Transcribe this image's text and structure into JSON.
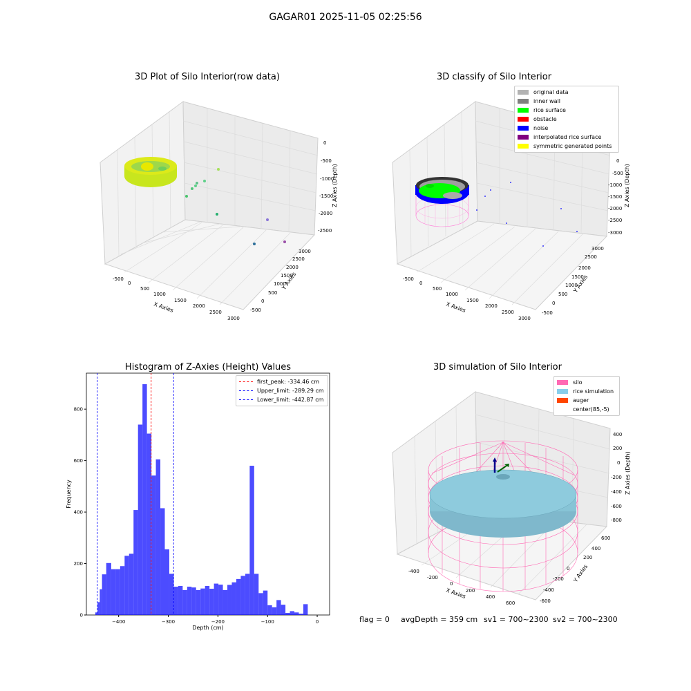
{
  "suptitle": "GAGAR01 2025-11-05 02:25:56",
  "panels": {
    "raw": {
      "title": "3D Plot of Silo Interior(row data)",
      "xlabel": "X Axies",
      "ylabel": "Y Axies",
      "zlabel": "Z Axies (Depth)",
      "xticks": [
        "-500",
        "0",
        "500",
        "1000",
        "1500",
        "2000",
        "2500",
        "3000"
      ],
      "yticks": [
        "-500",
        "0",
        "500",
        "1000",
        "1500",
        "2000",
        "2500",
        "3000"
      ],
      "zticks": [
        "0",
        "-500",
        "-1000",
        "-1500",
        "-2000",
        "-2500"
      ]
    },
    "classify": {
      "title": "3D classify of Silo Interior",
      "xlabel": "X Axies",
      "ylabel": "Y Axies",
      "zlabel": "Z Axies (Depth)",
      "xticks": [
        "-500",
        "0",
        "500",
        "1000",
        "1500",
        "2000",
        "2500",
        "3000"
      ],
      "yticks": [
        "-500",
        "0",
        "500",
        "1000",
        "1500",
        "2000",
        "2500",
        "3000"
      ],
      "zticks": [
        "0",
        "-500",
        "-1000",
        "-1500",
        "-2000",
        "-2500",
        "-3000"
      ],
      "legend": [
        {
          "label": "original data",
          "color": "#b3b3b3"
        },
        {
          "label": "inner wall",
          "color": "#808080"
        },
        {
          "label": "rice surface",
          "color": "#00ff00"
        },
        {
          "label": "obstacle",
          "color": "#ff0000"
        },
        {
          "label": "noise",
          "color": "#0000ff"
        },
        {
          "label": "interpolated rice surface",
          "color": "#800080"
        },
        {
          "label": "symmetric generated points",
          "color": "#ffff00"
        }
      ]
    },
    "simulation": {
      "title": "3D simulation of Silo Interior",
      "xlabel": "X Axies",
      "ylabel": "Y Axies",
      "zlabel": "Z Axies (Depth)",
      "xticks": [
        "-400",
        "-200",
        "0",
        "200",
        "400",
        "600"
      ],
      "yticks": [
        "-600",
        "-400",
        "-200",
        "0",
        "200",
        "400",
        "600"
      ],
      "zticks": [
        "400",
        "200",
        "0",
        "-200",
        "-400",
        "-600",
        "-800"
      ],
      "legend": [
        {
          "label": "silo",
          "color": "#ff69b4"
        },
        {
          "label": "rice simulation",
          "color": "#87ceeb"
        },
        {
          "label": "auger",
          "color": "#ff4500"
        },
        {
          "label": "center(85,-5)",
          "color": "#ffffff"
        }
      ]
    }
  },
  "histogram": {
    "title": "Histogram of Z-Axies (Height) Values",
    "xlabel": "Depth (cm)",
    "ylabel": "Frequency",
    "legend": [
      {
        "label": "first_peak: -334.46 cm",
        "color": "#ff0000"
      },
      {
        "label": "Upper_limit: -289.29 cm",
        "color": "#0000ff"
      },
      {
        "label": "Lower_limit: -442.87 cm",
        "color": "#0000ff"
      }
    ]
  },
  "footer": {
    "flag": "flag = 0",
    "avg": "avgDepth = 359 cm",
    "sv1": "sv1 = 700~2300",
    "sv2": "sv2 = 700~2300"
  },
  "chart_data": [
    {
      "type": "histogram",
      "title": "Histogram of Z-Axies (Height) Values",
      "xlabel": "Depth (cm)",
      "ylabel": "Frequency",
      "xlim": [
        -465,
        25
      ],
      "ylim": [
        0,
        940
      ],
      "xticks": [
        -400,
        -300,
        -200,
        -100,
        0
      ],
      "yticks": [
        0,
        200,
        400,
        600,
        800
      ],
      "bar_color": "#0000ff",
      "bins": [
        {
          "x0": -447,
          "x1": -442.5,
          "y": 10
        },
        {
          "x0": -442.5,
          "x1": -438,
          "y": 50
        },
        {
          "x0": -438,
          "x1": -433.5,
          "y": 100
        },
        {
          "x0": -433.5,
          "x1": -425,
          "y": 158
        },
        {
          "x0": -425,
          "x1": -415,
          "y": 202
        },
        {
          "x0": -415,
          "x1": -406,
          "y": 178
        },
        {
          "x0": -406,
          "x1": -397,
          "y": 178
        },
        {
          "x0": -397,
          "x1": -388,
          "y": 190
        },
        {
          "x0": -388,
          "x1": -379,
          "y": 230
        },
        {
          "x0": -379,
          "x1": -370,
          "y": 238
        },
        {
          "x0": -370,
          "x1": -361,
          "y": 408
        },
        {
          "x0": -361,
          "x1": -352,
          "y": 740
        },
        {
          "x0": -352,
          "x1": -343,
          "y": 897
        },
        {
          "x0": -343,
          "x1": -334,
          "y": 705
        },
        {
          "x0": -334,
          "x1": -325,
          "y": 542
        },
        {
          "x0": -325,
          "x1": -316,
          "y": 605
        },
        {
          "x0": -316,
          "x1": -307,
          "y": 415
        },
        {
          "x0": -307,
          "x1": -298,
          "y": 255
        },
        {
          "x0": -298,
          "x1": -289,
          "y": 160
        },
        {
          "x0": -289,
          "x1": -280,
          "y": 110
        },
        {
          "x0": -280,
          "x1": -271,
          "y": 113
        },
        {
          "x0": -271,
          "x1": -262,
          "y": 97
        },
        {
          "x0": -262,
          "x1": -253,
          "y": 110
        },
        {
          "x0": -253,
          "x1": -244,
          "y": 107
        },
        {
          "x0": -244,
          "x1": -235,
          "y": 97
        },
        {
          "x0": -235,
          "x1": -226,
          "y": 103
        },
        {
          "x0": -226,
          "x1": -217,
          "y": 113
        },
        {
          "x0": -217,
          "x1": -208,
          "y": 102
        },
        {
          "x0": -208,
          "x1": -199,
          "y": 122
        },
        {
          "x0": -199,
          "x1": -190,
          "y": 118
        },
        {
          "x0": -190,
          "x1": -181,
          "y": 97
        },
        {
          "x0": -181,
          "x1": -172,
          "y": 117
        },
        {
          "x0": -172,
          "x1": -163,
          "y": 127
        },
        {
          "x0": -163,
          "x1": -154,
          "y": 140
        },
        {
          "x0": -154,
          "x1": -145,
          "y": 152
        },
        {
          "x0": -145,
          "x1": -136,
          "y": 160
        },
        {
          "x0": -136,
          "x1": -127,
          "y": 580
        },
        {
          "x0": -127,
          "x1": -118,
          "y": 160
        },
        {
          "x0": -118,
          "x1": -109,
          "y": 85
        },
        {
          "x0": -109,
          "x1": -100,
          "y": 95
        },
        {
          "x0": -100,
          "x1": -91,
          "y": 38
        },
        {
          "x0": -91,
          "x1": -82,
          "y": 30
        },
        {
          "x0": -82,
          "x1": -73,
          "y": 58
        },
        {
          "x0": -73,
          "x1": -64,
          "y": 40
        },
        {
          "x0": -64,
          "x1": -55,
          "y": 8
        },
        {
          "x0": -55,
          "x1": -46,
          "y": 15
        },
        {
          "x0": -46,
          "x1": -37,
          "y": 10
        },
        {
          "x0": -37,
          "x1": -28,
          "y": 5
        },
        {
          "x0": -28,
          "x1": -19,
          "y": 42
        }
      ],
      "vlines": [
        {
          "label": "first_peak: -334.46 cm",
          "x": -334.46,
          "color": "#ff0000"
        },
        {
          "label": "Upper_limit: -289.29 cm",
          "x": -289.29,
          "color": "#0000ff"
        },
        {
          "label": "Lower_limit: -442.87 cm",
          "x": -442.87,
          "color": "#0000ff"
        }
      ]
    },
    {
      "type": "scatter",
      "title": "3D Plot of Silo Interior(row data)",
      "xlabel": "X Axies",
      "ylabel": "Y Axies",
      "zlabel": "Z Axies (Depth)",
      "xlim": [
        -500,
        3000
      ],
      "ylim": [
        -500,
        3000
      ],
      "zlim": [
        -2700,
        0
      ],
      "points": [
        {
          "x": 260,
          "y": 2750,
          "z": -250
        },
        {
          "x": 500,
          "y": 2600,
          "z": -1000
        },
        {
          "x": 1450,
          "y": 2400,
          "z": -1050
        },
        {
          "x": 1600,
          "y": 1850,
          "z": -1450
        },
        {
          "x": 2600,
          "y": 1550,
          "z": -2250
        }
      ]
    },
    {
      "type": "scatter",
      "title": "3D classify of Silo Interior",
      "xlabel": "X Axies",
      "ylabel": "Y Axies",
      "zlabel": "Z Axies (Depth)",
      "xlim": [
        -500,
        3000
      ],
      "ylim": [
        -500,
        3000
      ],
      "zlim": [
        -3000,
        0
      ]
    },
    {
      "type": "surface",
      "title": "3D simulation of Silo Interior",
      "xlabel": "X Axies",
      "ylabel": "Y Axies",
      "zlabel": "Z Axies (Depth)",
      "xlim": [
        -500,
        700
      ],
      "ylim": [
        -700,
        700
      ],
      "zlim": [
        -900,
        450
      ]
    }
  ]
}
